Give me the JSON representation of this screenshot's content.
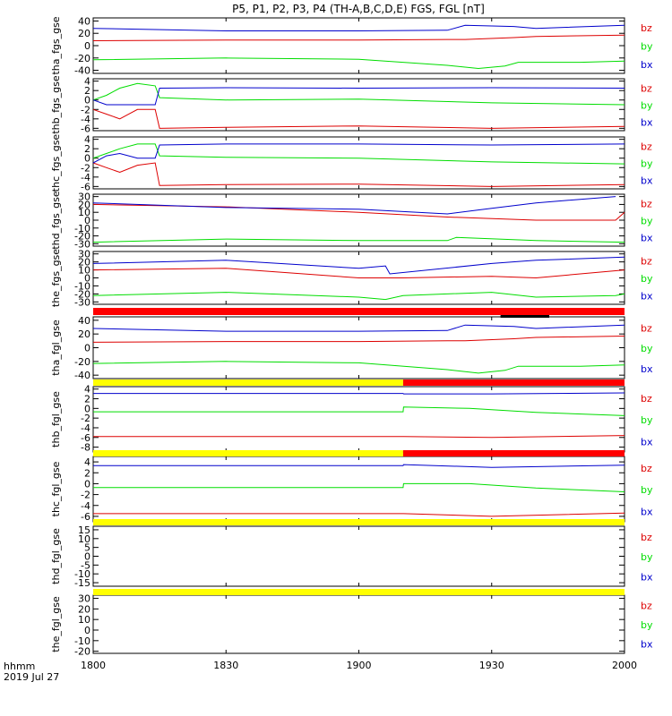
{
  "title": "P5, P1, P2, P3, P4 (TH-A,B,C,D,E) FGS, FGL [nT]",
  "footer": {
    "unit_label": "hhmm",
    "date_label": "2019 Jul 27"
  },
  "x_ticks": [
    "1800",
    "1830",
    "1900",
    "1930",
    "2000"
  ],
  "legend": {
    "bz": "bz",
    "by": "by",
    "bx": "bx"
  },
  "colors": {
    "bz": "#dd0000",
    "by": "#00dd00",
    "bx": "#0000cc",
    "bar_red": "#ff0000",
    "bar_yellow": "#ffff00",
    "bar_black": "#000000"
  },
  "chart_data": [
    {
      "type": "line",
      "ylabel": "tha_fgs_gse",
      "x_range_minutes": [
        0,
        120
      ],
      "ylim": [
        -45,
        45
      ],
      "yticks": [
        "40",
        "20",
        "0",
        "-20",
        "-40"
      ],
      "ytick_values": [
        40,
        20,
        0,
        -20,
        -40
      ],
      "series": [
        {
          "name": "bz",
          "x": [
            0,
            30,
            60,
            80,
            84,
            95,
            100,
            120
          ],
          "y": [
            8,
            9,
            9,
            10,
            10,
            13,
            15,
            17
          ]
        },
        {
          "name": "by",
          "x": [
            0,
            30,
            60,
            80,
            87,
            93,
            96,
            110,
            120
          ],
          "y": [
            -23,
            -20,
            -22,
            -32,
            -37,
            -33,
            -27,
            -27,
            -25
          ]
        },
        {
          "name": "bx",
          "x": [
            0,
            30,
            60,
            80,
            84,
            95,
            100,
            120
          ],
          "y": [
            28,
            24,
            24,
            25,
            33,
            31,
            28,
            33
          ]
        }
      ]
    },
    {
      "type": "line",
      "ylabel": "thb_fgs_gse",
      "x_range_minutes": [
        0,
        120
      ],
      "ylim": [
        -6.5,
        4.5
      ],
      "yticks": [
        "4",
        "2",
        "0",
        "-2",
        "-4",
        "-6"
      ],
      "ytick_values": [
        4,
        2,
        0,
        -2,
        -4,
        -6
      ],
      "series": [
        {
          "name": "bz",
          "x": [
            0,
            3,
            6,
            10,
            14,
            15,
            30,
            60,
            90,
            120
          ],
          "y": [
            -2,
            -3,
            -4,
            -2,
            -2,
            -6,
            -5.8,
            -5.5,
            -6,
            -5.6
          ]
        },
        {
          "name": "by",
          "x": [
            0,
            3,
            6,
            10,
            14,
            15,
            30,
            60,
            90,
            120
          ],
          "y": [
            0,
            1,
            2.5,
            3.5,
            3,
            0.5,
            0,
            0.2,
            -0.6,
            -1
          ]
        },
        {
          "name": "bx",
          "x": [
            0,
            3,
            6,
            10,
            14,
            15,
            30,
            60,
            90,
            120
          ],
          "y": [
            0,
            -1,
            -1,
            -1,
            -1,
            2.5,
            2.6,
            2.5,
            2.6,
            2.5
          ]
        }
      ]
    },
    {
      "type": "line",
      "ylabel": "thc_fgs_gse",
      "x_range_minutes": [
        0,
        120
      ],
      "ylim": [
        -6.5,
        4.5
      ],
      "yticks": [
        "4",
        "2",
        "0",
        "-2",
        "-4",
        "-6"
      ],
      "ytick_values": [
        4,
        2,
        0,
        -2,
        -4,
        -6
      ],
      "series": [
        {
          "name": "bz",
          "x": [
            0,
            3,
            6,
            10,
            14,
            15,
            30,
            60,
            90,
            120
          ],
          "y": [
            -1,
            -2,
            -3,
            -1.5,
            -1,
            -5.8,
            -5.6,
            -5.5,
            -6,
            -5.6
          ]
        },
        {
          "name": "by",
          "x": [
            0,
            3,
            6,
            10,
            14,
            15,
            30,
            60,
            90,
            120
          ],
          "y": [
            0,
            1,
            2,
            3,
            3,
            0.5,
            0.2,
            0,
            -0.8,
            -1.2
          ]
        },
        {
          "name": "bx",
          "x": [
            0,
            3,
            6,
            10,
            14,
            15,
            30,
            60,
            90,
            120
          ],
          "y": [
            -1,
            0.5,
            1,
            0,
            0,
            2.8,
            3,
            3,
            2.8,
            3
          ]
        }
      ]
    },
    {
      "type": "line",
      "ylabel": "thd_fgs_gse",
      "x_range_minutes": [
        0,
        120
      ],
      "ylim": [
        -33,
        33
      ],
      "yticks": [
        "30",
        "20",
        "10",
        "0",
        "-10",
        "-20",
        "-30"
      ],
      "ytick_values": [
        30,
        20,
        10,
        0,
        -10,
        -20,
        -30
      ],
      "series": [
        {
          "name": "bz",
          "x": [
            0,
            30,
            60,
            80,
            100,
            118,
            120
          ],
          "y": [
            20,
            17,
            10,
            4,
            0,
            0,
            10
          ]
        },
        {
          "name": "by",
          "x": [
            0,
            30,
            60,
            80,
            82,
            100,
            120
          ],
          "y": [
            -28,
            -24,
            -26,
            -26,
            -22,
            -26,
            -28
          ]
        },
        {
          "name": "bx",
          "x": [
            0,
            30,
            60,
            80,
            90,
            100,
            118
          ],
          "y": [
            22,
            16,
            14,
            8,
            15,
            22,
            30
          ]
        }
      ]
    },
    {
      "type": "line",
      "ylabel": "the_fgs_gse",
      "x_range_minutes": [
        0,
        120
      ],
      "ylim": [
        -33,
        33
      ],
      "yticks": [
        "30",
        "20",
        "10",
        "0",
        "-10",
        "-20",
        "-30"
      ],
      "ytick_values": [
        30,
        20,
        10,
        0,
        -10,
        -20,
        -30
      ],
      "series": [
        {
          "name": "bz",
          "x": [
            0,
            30,
            60,
            66,
            70,
            90,
            100,
            120
          ],
          "y": [
            10,
            12,
            0,
            0,
            0,
            2,
            0,
            10
          ]
        },
        {
          "name": "by",
          "x": [
            0,
            30,
            60,
            66,
            70,
            90,
            100,
            118,
            120
          ],
          "y": [
            -22,
            -18,
            -24,
            -27,
            -22,
            -18,
            -24,
            -22,
            -20
          ]
        },
        {
          "name": "bx",
          "x": [
            0,
            30,
            60,
            66,
            67,
            90,
            100,
            120
          ],
          "y": [
            18,
            22,
            12,
            15,
            5,
            18,
            22,
            26
          ]
        }
      ]
    },
    {
      "type": "line",
      "ylabel": "tha_fgl_gse",
      "x_range_minutes": [
        0,
        120
      ],
      "ylim": [
        -45,
        45
      ],
      "yticks": [
        "40",
        "20",
        "0",
        "-20",
        "-40"
      ],
      "ytick_values": [
        40,
        20,
        0,
        -20,
        -40
      ],
      "series": [
        {
          "name": "bz",
          "x": [
            0,
            30,
            60,
            80,
            84,
            95,
            100,
            120
          ],
          "y": [
            8,
            9,
            9,
            10,
            10,
            13,
            15,
            17
          ]
        },
        {
          "name": "by",
          "x": [
            0,
            30,
            60,
            80,
            87,
            93,
            96,
            110,
            120
          ],
          "y": [
            -23,
            -20,
            -22,
            -32,
            -37,
            -33,
            -27,
            -27,
            -25
          ]
        },
        {
          "name": "bx",
          "x": [
            0,
            30,
            60,
            80,
            84,
            95,
            100,
            120
          ],
          "y": [
            28,
            24,
            24,
            25,
            33,
            31,
            28,
            33
          ]
        }
      ]
    },
    {
      "type": "line",
      "ylabel": "thb_fgl_gse",
      "x_range_minutes": [
        0,
        120
      ],
      "ylim": [
        -9,
        4.5
      ],
      "yticks": [
        "4",
        "2",
        "0",
        "-2",
        "-4",
        "-6",
        "-8"
      ],
      "ytick_values": [
        4,
        2,
        0,
        -2,
        -4,
        -6,
        -8
      ],
      "series": [
        {
          "name": "bz",
          "x": [
            0,
            70,
            70.1,
            90,
            120
          ],
          "y": [
            -5.8,
            -5.8,
            -5.8,
            -6,
            -5.6
          ]
        },
        {
          "name": "by",
          "x": [
            0,
            70,
            70.1,
            85,
            100,
            120
          ],
          "y": [
            -0.7,
            -0.7,
            0.3,
            0,
            -0.8,
            -1.5
          ]
        },
        {
          "name": "bx",
          "x": [
            0,
            70,
            70.1,
            90,
            120
          ],
          "y": [
            3.1,
            3.1,
            3,
            3,
            3.2
          ]
        }
      ]
    },
    {
      "type": "line",
      "ylabel": "thc_fgl_gse",
      "x_range_minutes": [
        0,
        120
      ],
      "ylim": [
        -7,
        5
      ],
      "yticks": [
        "4",
        "2",
        "0",
        "-2",
        "-4",
        "-6"
      ],
      "ytick_values": [
        4,
        2,
        0,
        -2,
        -4,
        -6
      ],
      "series": [
        {
          "name": "bz",
          "x": [
            0,
            70,
            70.1,
            90,
            120
          ],
          "y": [
            -5.5,
            -5.5,
            -5.5,
            -6,
            -5.4
          ]
        },
        {
          "name": "by",
          "x": [
            0,
            70,
            70.1,
            85,
            100,
            120
          ],
          "y": [
            -0.7,
            -0.7,
            0,
            0,
            -0.8,
            -1.5
          ]
        },
        {
          "name": "bx",
          "x": [
            0,
            70,
            70.1,
            90,
            120
          ],
          "y": [
            3.3,
            3.3,
            3.5,
            3,
            3.4
          ]
        }
      ]
    },
    {
      "type": "line",
      "ylabel": "thd_fgl_gse",
      "x_range_minutes": [
        0,
        120
      ],
      "ylim": [
        -17,
        17
      ],
      "yticks": [
        "15",
        "10",
        "5",
        "0",
        "-5",
        "-10",
        "-15"
      ],
      "ytick_values": [
        15,
        10,
        5,
        0,
        -5,
        -10,
        -15
      ],
      "series": []
    },
    {
      "type": "line",
      "ylabel": "the_fgl_gse",
      "x_range_minutes": [
        0,
        120
      ],
      "ylim": [
        -22,
        33
      ],
      "yticks": [
        "30",
        "20",
        "10",
        "0",
        "-10",
        "-20"
      ],
      "ytick_values": [
        30,
        20,
        10,
        0,
        -10,
        -20
      ],
      "series": []
    }
  ],
  "status_bars": [
    {
      "color": "bar_red",
      "x_ranges": [
        [
          0,
          120
        ]
      ],
      "extra": {
        "color": "bar_black",
        "x_ranges": [
          [
            92,
            103
          ]
        ]
      }
    },
    {
      "color": "bar_yellow",
      "x_ranges": [
        [
          0,
          70
        ]
      ],
      "extra": {
        "color": "bar_red",
        "x_ranges": [
          [
            70,
            120
          ]
        ]
      }
    },
    {
      "color": "bar_yellow",
      "x_ranges": [
        [
          0,
          70
        ]
      ],
      "extra": {
        "color": "bar_red",
        "x_ranges": [
          [
            70,
            120
          ]
        ]
      }
    },
    {
      "color": "bar_yellow",
      "x_ranges": [
        [
          0,
          120
        ]
      ]
    },
    {
      "color": "bar_yellow",
      "x_ranges": [
        [
          0,
          120
        ]
      ]
    }
  ]
}
